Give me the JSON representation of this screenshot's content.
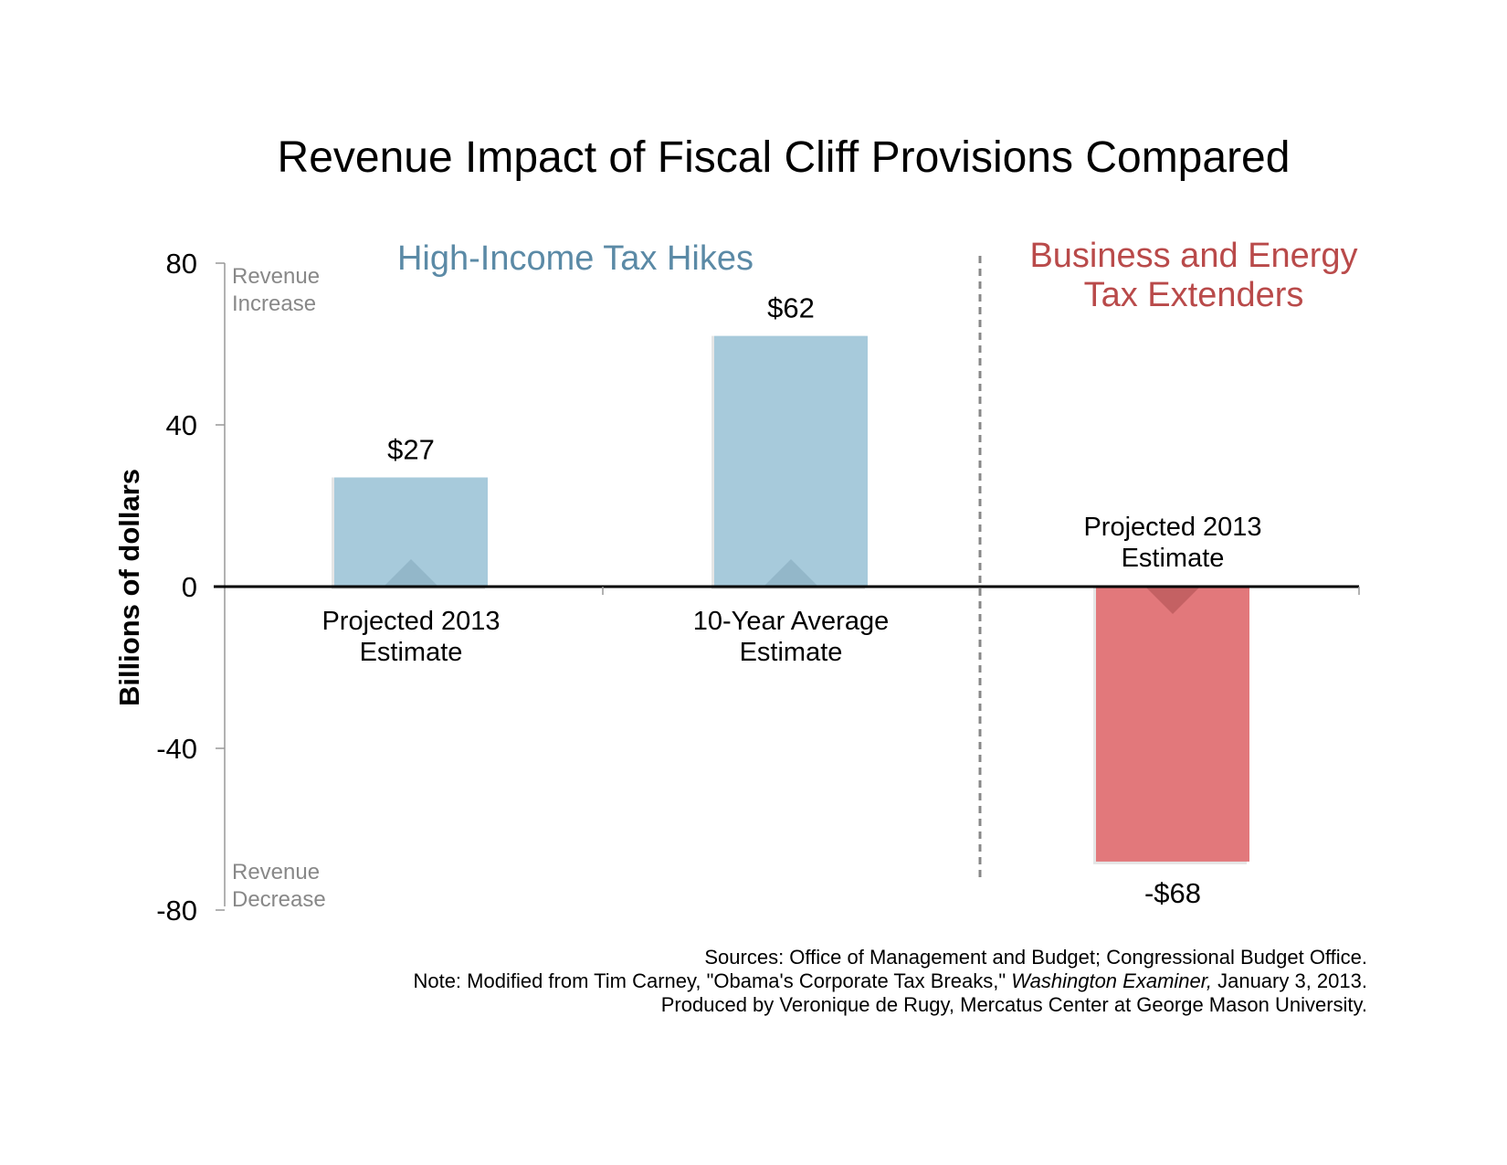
{
  "chart_data": {
    "type": "bar",
    "title": "Revenue Impact of Fiscal Cliff Provisions Compared",
    "ylabel": "Billions of dollars",
    "ylim": [
      -80,
      80
    ],
    "yticks": [
      80,
      40,
      0,
      -40,
      -80
    ],
    "grid": false,
    "groups": [
      {
        "label": "High-Income Tax Hikes",
        "color": "#5b8aa6"
      },
      {
        "label_lines": [
          "Business and Energy",
          "Tax Extenders"
        ],
        "color": "#b94a4a"
      }
    ],
    "bars": [
      {
        "category_lines": [
          "Projected 2013",
          "Estimate"
        ],
        "value": 27,
        "value_label": "$27",
        "group": 0,
        "color": "#a7cadb"
      },
      {
        "category_lines": [
          "10-Year Average",
          "Estimate"
        ],
        "value": 62,
        "value_label": "$62",
        "group": 0,
        "color": "#a7cadb"
      },
      {
        "category_lines": [
          "Projected 2013",
          "Estimate"
        ],
        "value": -68,
        "value_label": "-$68",
        "group": 1,
        "color": "#e2787b"
      }
    ],
    "axis_notes": {
      "top": [
        "Revenue",
        "Increase"
      ],
      "bottom": [
        "Revenue",
        "Decrease"
      ]
    }
  },
  "footer": {
    "sources": "Sources: Office of Management and Budget; Congressional Budget Office.",
    "note_prefix": "Note: Modified from Tim Carney, \"Obama's Corporate Tax Breaks,\" ",
    "note_publication": "Washington Examiner,",
    "note_suffix": " January 3, 2013.",
    "produced_by": "Produced by Veronique de Rugy, Mercatus Center at George Mason University."
  }
}
